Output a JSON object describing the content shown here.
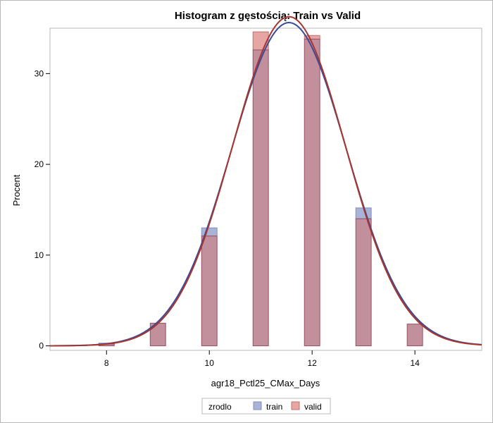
{
  "chart_data": {
    "type": "histogram",
    "title": "Histogram z gęstością: Train vs Valid",
    "xlabel": "agr18_Pctl25_CMax_Days",
    "ylabel": "Procent",
    "xlim": [
      6.9,
      15.3
    ],
    "ylim": [
      -0.5,
      35.0
    ],
    "xticks": [
      8,
      10,
      12,
      14
    ],
    "yticks": [
      0,
      10,
      20,
      30
    ],
    "bin_width": 0.3,
    "grid": false,
    "legend": {
      "title": "zrodlo",
      "position": "bottom",
      "entries": [
        {
          "name": "train",
          "fill": "#a9b3d6",
          "stroke": "#7f8fc0"
        },
        {
          "name": "valid",
          "fill": "#e6a7a4",
          "stroke": "#c46f6c"
        }
      ]
    },
    "series": [
      {
        "name": "train",
        "x": [
          8,
          9,
          10,
          11,
          12,
          13,
          14
        ],
        "values": [
          0.3,
          2.5,
          13.0,
          32.6,
          33.8,
          15.2,
          2.4
        ],
        "density": {
          "type": "normal",
          "mean": 11.55,
          "sd": 1.12,
          "color": "#3b4a99"
        }
      },
      {
        "name": "valid",
        "x": [
          8,
          9,
          10,
          11,
          12,
          13,
          14
        ],
        "values": [
          0.2,
          2.5,
          12.1,
          34.6,
          34.2,
          14.0,
          2.4
        ],
        "density": {
          "type": "normal",
          "mean": 11.55,
          "sd": 1.1,
          "color": "#a8352e"
        }
      }
    ],
    "overlap_fill": "#c28f9d",
    "overlap_stroke": "#9a4f5e"
  }
}
